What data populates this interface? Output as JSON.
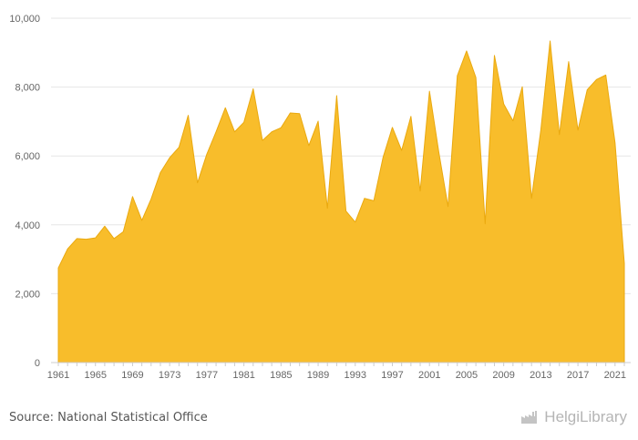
{
  "source_text": "Source: National Statistical Office",
  "brand": {
    "name": "HelgiLibrary",
    "icon": "factory-logo-icon"
  },
  "colors": {
    "area": "#f8bd2b",
    "area_stroke": "#eaa90f",
    "grid": "#e6e6e6",
    "axis_text": "#666666"
  },
  "chart_data": {
    "type": "area",
    "title": "",
    "xlabel": "",
    "ylabel": "",
    "ylim": [
      0,
      10000
    ],
    "yticks": [
      "0",
      "2,000",
      "4,000",
      "6,000",
      "8,000",
      "10,000"
    ],
    "ytick_values": [
      0,
      2000,
      4000,
      6000,
      8000,
      10000
    ],
    "xlim": [
      1961,
      2022
    ],
    "xticks": [
      "1961",
      "1965",
      "1969",
      "1973",
      "1977",
      "1981",
      "1985",
      "1989",
      "1993",
      "1997",
      "2001",
      "2005",
      "2009",
      "2013",
      "2017",
      "2021"
    ],
    "grid": true,
    "x": [
      1961,
      1962,
      1963,
      1964,
      1965,
      1966,
      1967,
      1968,
      1969,
      1970,
      1971,
      1972,
      1973,
      1974,
      1975,
      1976,
      1977,
      1978,
      1979,
      1980,
      1981,
      1982,
      1983,
      1984,
      1985,
      1986,
      1987,
      1988,
      1989,
      1990,
      1991,
      1992,
      1993,
      1994,
      1995,
      1996,
      1997,
      1998,
      1999,
      2000,
      2001,
      2002,
      2003,
      2004,
      2005,
      2006,
      2007,
      2008,
      2009,
      2010,
      2011,
      2012,
      2013,
      2014,
      2015,
      2016,
      2017,
      2018,
      2019,
      2020,
      2021,
      2022
    ],
    "values": [
      2750,
      3300,
      3600,
      3580,
      3620,
      3960,
      3600,
      3800,
      4820,
      4130,
      4750,
      5520,
      5950,
      6250,
      7180,
      5220,
      6050,
      6700,
      7400,
      6700,
      6980,
      7950,
      6450,
      6700,
      6820,
      7250,
      7230,
      6300,
      7010,
      4480,
      7750,
      4400,
      4080,
      4770,
      4700,
      5960,
      6830,
      6160,
      7150,
      4980,
      7880,
      6120,
      4530,
      8330,
      9050,
      8280,
      4030,
      8920,
      7510,
      7020,
      8010,
      4770,
      6750,
      9340,
      6620,
      8740,
      6750,
      7920,
      8220,
      8350,
      6380,
      2880
    ]
  }
}
